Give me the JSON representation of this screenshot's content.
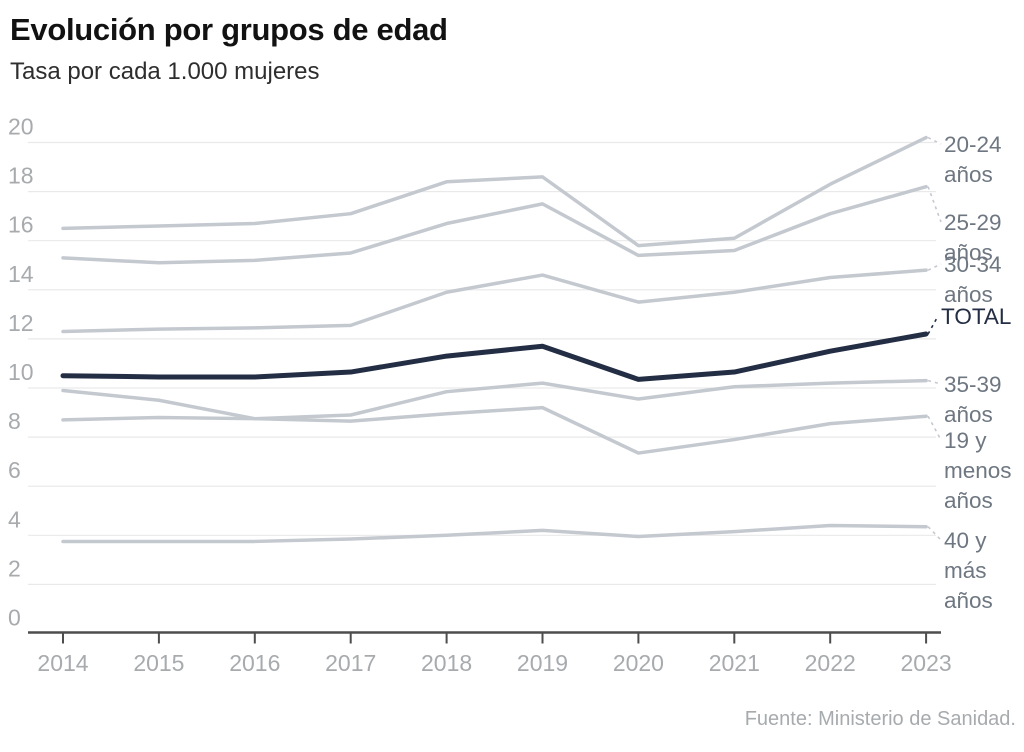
{
  "title": "Evolución por grupos de edad",
  "subtitle": "Tasa por cada 1.000 mujeres",
  "source": "Fuente: Ministerio de Sanidad.",
  "colors": {
    "series_line": "#c4c9d0",
    "total_line": "#232e44",
    "grid": "#e9e9e9",
    "axis": "#4d4d4d",
    "tick_label": "#a7abae",
    "series_label": "#6e7781",
    "title_text": "#121212",
    "subtitle_text": "#2e2e2e",
    "source_text": "#a7abae"
  },
  "chart_data": {
    "type": "line",
    "x": [
      2014,
      2015,
      2016,
      2017,
      2018,
      2019,
      2020,
      2021,
      2022,
      2023
    ],
    "ylim": [
      0,
      20
    ],
    "yticks": [
      0,
      2,
      4,
      6,
      8,
      10,
      12,
      14,
      16,
      18,
      20
    ],
    "grid": "horizontal",
    "legend_position": "right-edge-labels",
    "series": [
      {
        "name": "20-24 años",
        "label_lines": [
          "20-24",
          "años"
        ],
        "emphasis": false,
        "values": [
          16.5,
          16.6,
          16.7,
          17.1,
          18.4,
          18.6,
          15.8,
          16.1,
          18.3,
          20.2
        ]
      },
      {
        "name": "25-29 años",
        "label_lines": [
          "25-29",
          "años"
        ],
        "emphasis": false,
        "values": [
          15.3,
          15.1,
          15.2,
          15.5,
          16.7,
          17.5,
          15.4,
          15.6,
          17.1,
          18.2
        ]
      },
      {
        "name": "30-34 años",
        "label_lines": [
          "30-34",
          "años"
        ],
        "emphasis": false,
        "values": [
          12.3,
          12.4,
          12.45,
          12.55,
          13.9,
          14.6,
          13.5,
          13.9,
          14.5,
          14.8
        ]
      },
      {
        "name": "TOTAL",
        "label_lines": [
          "TOTAL"
        ],
        "emphasis": true,
        "values": [
          10.5,
          10.45,
          10.45,
          10.65,
          11.3,
          11.7,
          10.35,
          10.65,
          11.5,
          12.2
        ]
      },
      {
        "name": "35-39 años",
        "label_lines": [
          "35-39",
          "años"
        ],
        "emphasis": false,
        "values": [
          8.7,
          8.8,
          8.75,
          8.9,
          9.85,
          10.2,
          9.55,
          10.05,
          10.2,
          10.3
        ]
      },
      {
        "name": "19 y menos años",
        "label_lines": [
          "19 y",
          "menos",
          "años"
        ],
        "emphasis": false,
        "values": [
          9.9,
          9.5,
          8.75,
          8.65,
          8.95,
          9.2,
          7.35,
          7.9,
          8.55,
          8.85
        ]
      },
      {
        "name": "40 y más años",
        "label_lines": [
          "40 y",
          "más",
          "años"
        ],
        "emphasis": false,
        "values": [
          3.75,
          3.75,
          3.75,
          3.85,
          4.0,
          4.2,
          3.95,
          4.15,
          4.4,
          4.35
        ]
      }
    ]
  }
}
